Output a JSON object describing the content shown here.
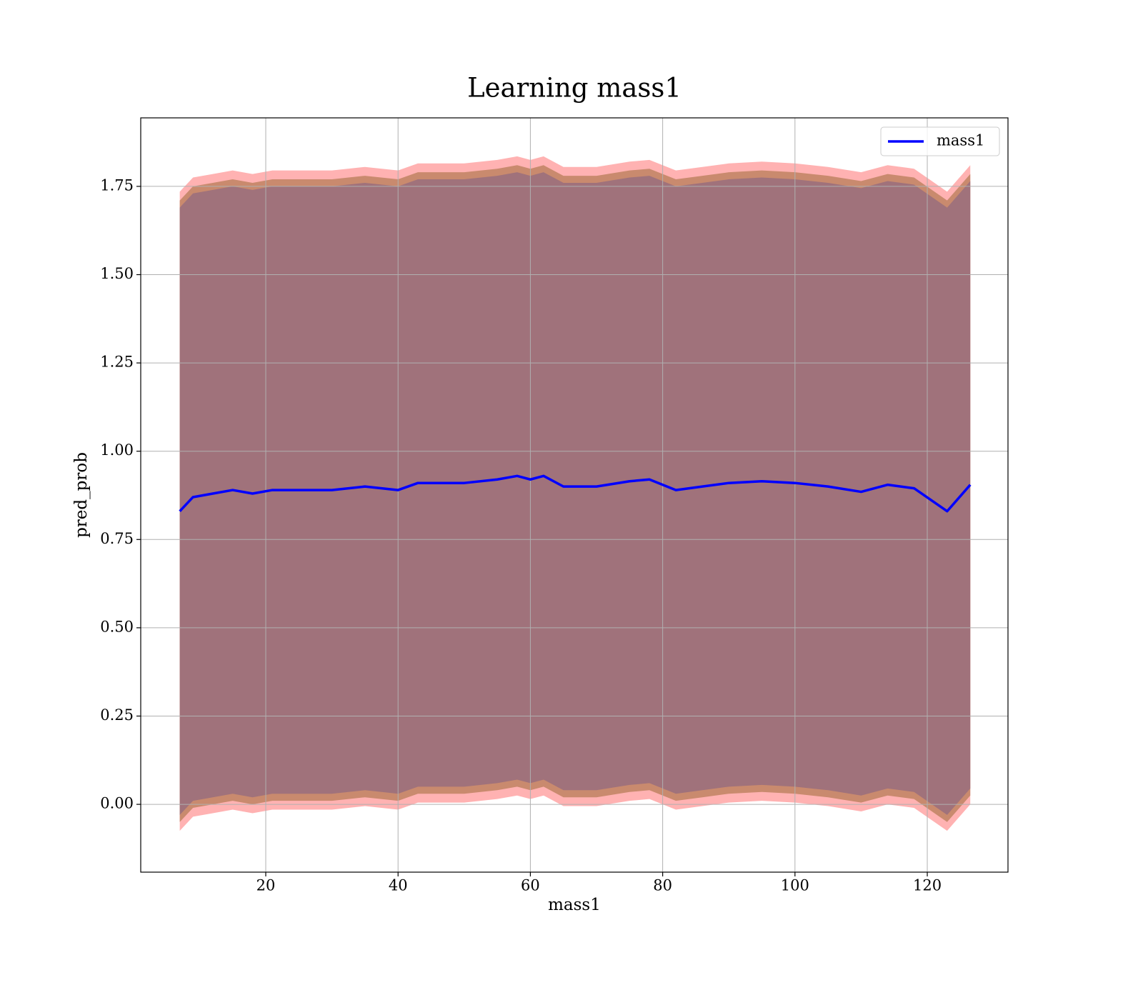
{
  "chart_data": {
    "type": "line",
    "title": "Learning mass1",
    "xlabel": "mass1",
    "ylabel": "pred_prob",
    "x": [
      7,
      9,
      12,
      15,
      18,
      21,
      25,
      30,
      35,
      40,
      43,
      46,
      50,
      55,
      58,
      60,
      62,
      65,
      70,
      75,
      78,
      82,
      86,
      90,
      95,
      100,
      105,
      110,
      114,
      118,
      123,
      126.5
    ],
    "series": [
      {
        "name": "mass1",
        "color": "#0000ff",
        "values": [
          0.83,
          0.87,
          0.88,
          0.89,
          0.88,
          0.89,
          0.89,
          0.89,
          0.9,
          0.89,
          0.91,
          0.91,
          0.91,
          0.92,
          0.93,
          0.92,
          0.93,
          0.9,
          0.9,
          0.915,
          0.92,
          0.89,
          0.9,
          0.91,
          0.915,
          0.91,
          0.9,
          0.885,
          0.905,
          0.895,
          0.83,
          0.905
        ]
      }
    ],
    "bands": [
      {
        "color": "#ff0000",
        "opacity": 0.3,
        "upper": [
          1.735,
          1.775,
          1.785,
          1.795,
          1.785,
          1.795,
          1.795,
          1.795,
          1.805,
          1.795,
          1.815,
          1.815,
          1.815,
          1.825,
          1.835,
          1.825,
          1.835,
          1.805,
          1.805,
          1.82,
          1.825,
          1.795,
          1.805,
          1.815,
          1.82,
          1.815,
          1.805,
          1.79,
          1.81,
          1.8,
          1.735,
          1.81
        ],
        "lower": [
          -0.075,
          -0.035,
          -0.025,
          -0.015,
          -0.025,
          -0.015,
          -0.015,
          -0.015,
          -0.005,
          -0.015,
          0.005,
          0.005,
          0.005,
          0.015,
          0.025,
          0.015,
          0.025,
          -0.005,
          -0.005,
          0.01,
          0.015,
          -0.015,
          -0.005,
          0.005,
          0.01,
          0.005,
          -0.005,
          -0.02,
          0,
          -0.01,
          -0.075,
          0
        ]
      },
      {
        "color": "#c98a6e",
        "opacity": 1,
        "upper": [
          1.71,
          1.75,
          1.76,
          1.77,
          1.76,
          1.77,
          1.77,
          1.77,
          1.78,
          1.77,
          1.79,
          1.79,
          1.79,
          1.8,
          1.81,
          1.8,
          1.81,
          1.78,
          1.78,
          1.795,
          1.8,
          1.77,
          1.78,
          1.79,
          1.795,
          1.79,
          1.78,
          1.765,
          1.785,
          1.775,
          1.71,
          1.785
        ],
        "lower": [
          -0.05,
          -0.01,
          0,
          0.01,
          0,
          0.01,
          0.01,
          0.01,
          0.02,
          0.01,
          0.03,
          0.03,
          0.03,
          0.04,
          0.05,
          0.04,
          0.05,
          0.02,
          0.02,
          0.035,
          0.04,
          0.01,
          0.02,
          0.03,
          0.035,
          0.03,
          0.02,
          0.005,
          0.025,
          0.015,
          -0.05,
          0.025
        ]
      },
      {
        "color": "#a0727b",
        "opacity": 1,
        "upper": [
          1.69,
          1.73,
          1.74,
          1.75,
          1.74,
          1.75,
          1.75,
          1.75,
          1.76,
          1.75,
          1.77,
          1.77,
          1.77,
          1.78,
          1.79,
          1.78,
          1.79,
          1.76,
          1.76,
          1.775,
          1.78,
          1.75,
          1.76,
          1.77,
          1.775,
          1.77,
          1.76,
          1.745,
          1.765,
          1.755,
          1.69,
          1.765
        ],
        "lower": [
          -0.03,
          0.01,
          0.02,
          0.03,
          0.02,
          0.03,
          0.03,
          0.03,
          0.04,
          0.03,
          0.05,
          0.05,
          0.05,
          0.06,
          0.07,
          0.06,
          0.07,
          0.04,
          0.04,
          0.055,
          0.06,
          0.03,
          0.04,
          0.05,
          0.055,
          0.05,
          0.04,
          0.025,
          0.045,
          0.035,
          -0.03,
          0.045
        ]
      }
    ],
    "xlim": [
      1.1,
      132.2
    ],
    "ylim": [
      -0.192,
      1.944
    ],
    "xticks": [
      20,
      40,
      60,
      80,
      100,
      120
    ],
    "yticks": [
      {
        "value": 0,
        "label": "0.00"
      },
      {
        "value": 0.25,
        "label": "0.25"
      },
      {
        "value": 0.5,
        "label": "0.50"
      },
      {
        "value": 0.75,
        "label": "0.75"
      },
      {
        "value": 1,
        "label": "1.00"
      },
      {
        "value": 1.25,
        "label": "1.25"
      },
      {
        "value": 1.5,
        "label": "1.50"
      },
      {
        "value": 1.75,
        "label": "1.75"
      }
    ],
    "grid": true,
    "legend": "upper right"
  }
}
